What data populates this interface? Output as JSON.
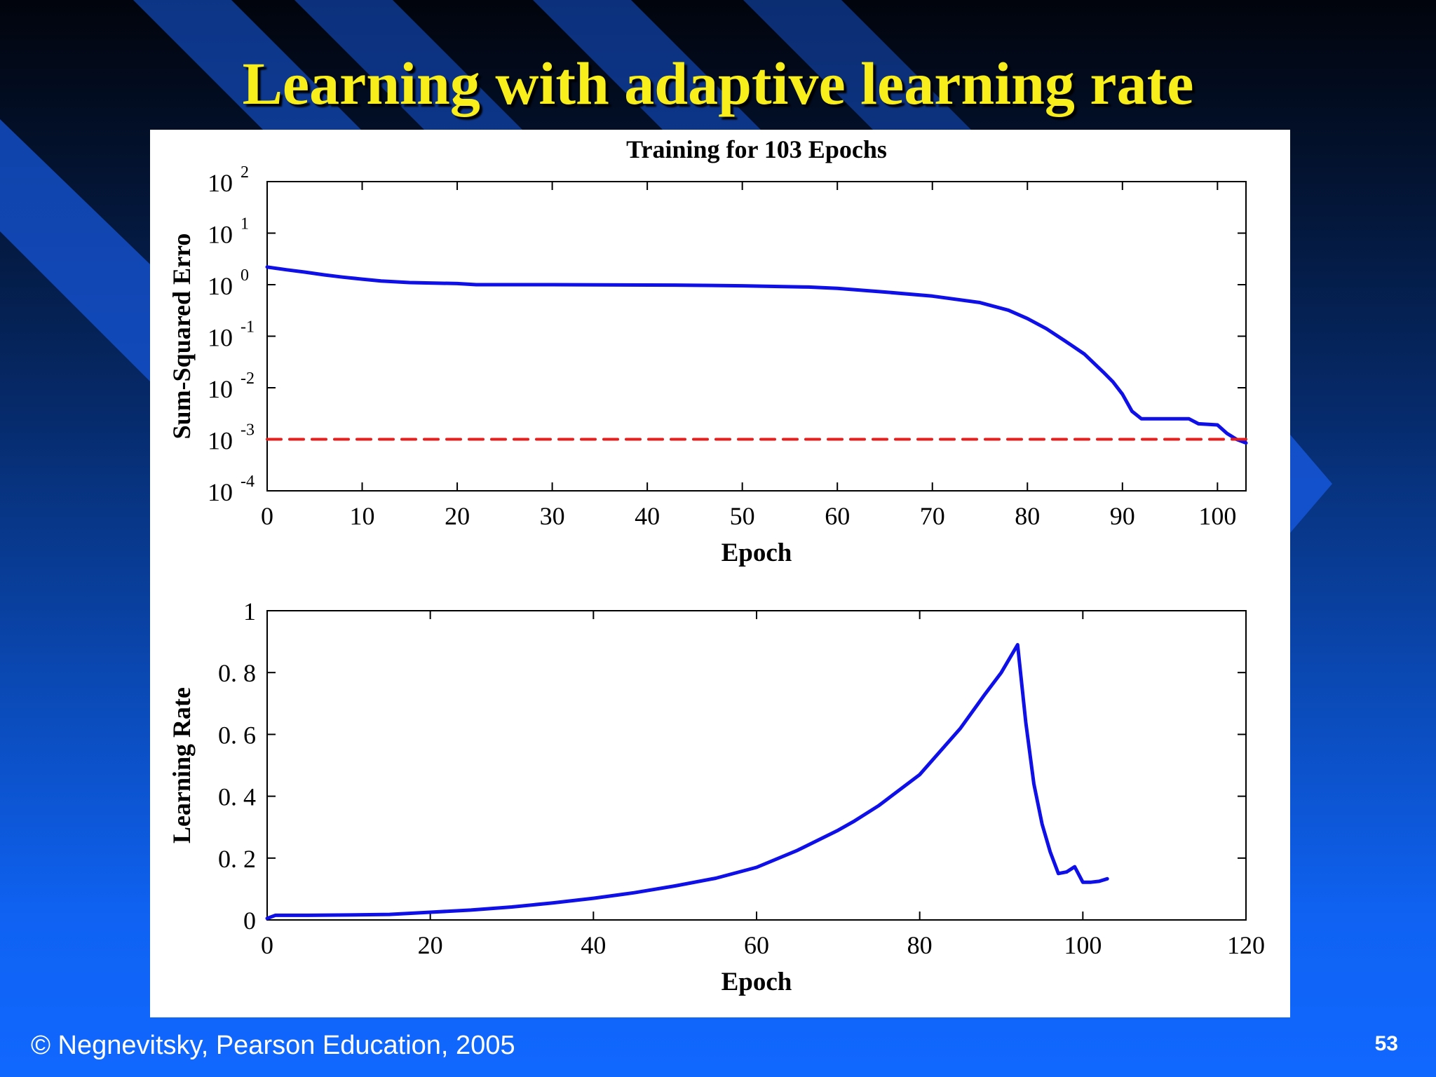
{
  "slide": {
    "title": "Learning with adaptive learning rate",
    "footer": "© Negnevitsky, Pearson Education, 2005",
    "page_number": "53"
  },
  "colors": {
    "title": "#f7ee1c",
    "series": "#0f10e8",
    "goal_line": "#e51e1e",
    "background_dark": "#01040c",
    "background_light": "#1168ff"
  },
  "chart_data": [
    {
      "type": "line",
      "title": "Training for 103 Epochs",
      "xlabel": "Epoch",
      "ylabel": "Sum-Squared Erro",
      "yscale": "log",
      "xlim": [
        0,
        103
      ],
      "ylim": [
        0.0001,
        100
      ],
      "xticks": [
        0,
        10,
        20,
        30,
        40,
        50,
        60,
        70,
        80,
        90,
        100
      ],
      "yticks": [
        {
          "value": 100,
          "base": "10",
          "exp": "2"
        },
        {
          "value": 10,
          "base": "10",
          "exp": "1"
        },
        {
          "value": 1,
          "base": "10",
          "exp": "0"
        },
        {
          "value": 0.1,
          "base": "10",
          "exp": "-1"
        },
        {
          "value": 0.01,
          "base": "10",
          "exp": "-2"
        },
        {
          "value": 0.001,
          "base": "10",
          "exp": "-3"
        },
        {
          "value": 0.0001,
          "base": "10",
          "exp": "-4"
        }
      ],
      "grid": false,
      "series": [
        {
          "style": "solid",
          "x": [
            0,
            2,
            4,
            6,
            8,
            10,
            12,
            15,
            20,
            22,
            30,
            43,
            50,
            57,
            60,
            65,
            70,
            75,
            78,
            80,
            82,
            84,
            86,
            88,
            89,
            90,
            91,
            92,
            95,
            97,
            98,
            100,
            101,
            102,
            103
          ],
          "y": [
            2.2,
            1.95,
            1.75,
            1.55,
            1.4,
            1.28,
            1.18,
            1.1,
            1.05,
            1.0,
            1.0,
            0.98,
            0.95,
            0.9,
            0.85,
            0.72,
            0.6,
            0.45,
            0.32,
            0.22,
            0.14,
            0.08,
            0.045,
            0.02,
            0.013,
            0.0075,
            0.0035,
            0.0025,
            0.0025,
            0.0025,
            0.002,
            0.0019,
            0.0013,
            0.001,
            0.00085
          ]
        },
        {
          "style": "dashed",
          "x": [
            0,
            103
          ],
          "y": [
            0.001,
            0.001
          ]
        }
      ]
    },
    {
      "type": "line",
      "xlabel": "Epoch",
      "ylabel": "Learning Rate",
      "xlim": [
        0,
        120
      ],
      "ylim": [
        0,
        1
      ],
      "xticks": [
        0,
        20,
        40,
        60,
        80,
        100,
        120
      ],
      "yticks": [
        "0",
        "0. 2",
        "0. 4",
        "0. 6",
        "0. 8",
        "1"
      ],
      "grid": false,
      "series": [
        {
          "style": "solid",
          "x": [
            0,
            1,
            5,
            10,
            15,
            20,
            25,
            30,
            35,
            40,
            45,
            50,
            55,
            60,
            65,
            70,
            72,
            75,
            80,
            85,
            88,
            90,
            92,
            93,
            94,
            95,
            96,
            97,
            98,
            99,
            100,
            101,
            102,
            103
          ],
          "y": [
            0.005,
            0.015,
            0.015,
            0.016,
            0.018,
            0.025,
            0.032,
            0.042,
            0.055,
            0.07,
            0.088,
            0.11,
            0.135,
            0.17,
            0.225,
            0.29,
            0.32,
            0.37,
            0.47,
            0.62,
            0.73,
            0.8,
            0.89,
            0.64,
            0.44,
            0.31,
            0.22,
            0.15,
            0.155,
            0.172,
            0.122,
            0.122,
            0.125,
            0.133
          ]
        }
      ]
    }
  ]
}
